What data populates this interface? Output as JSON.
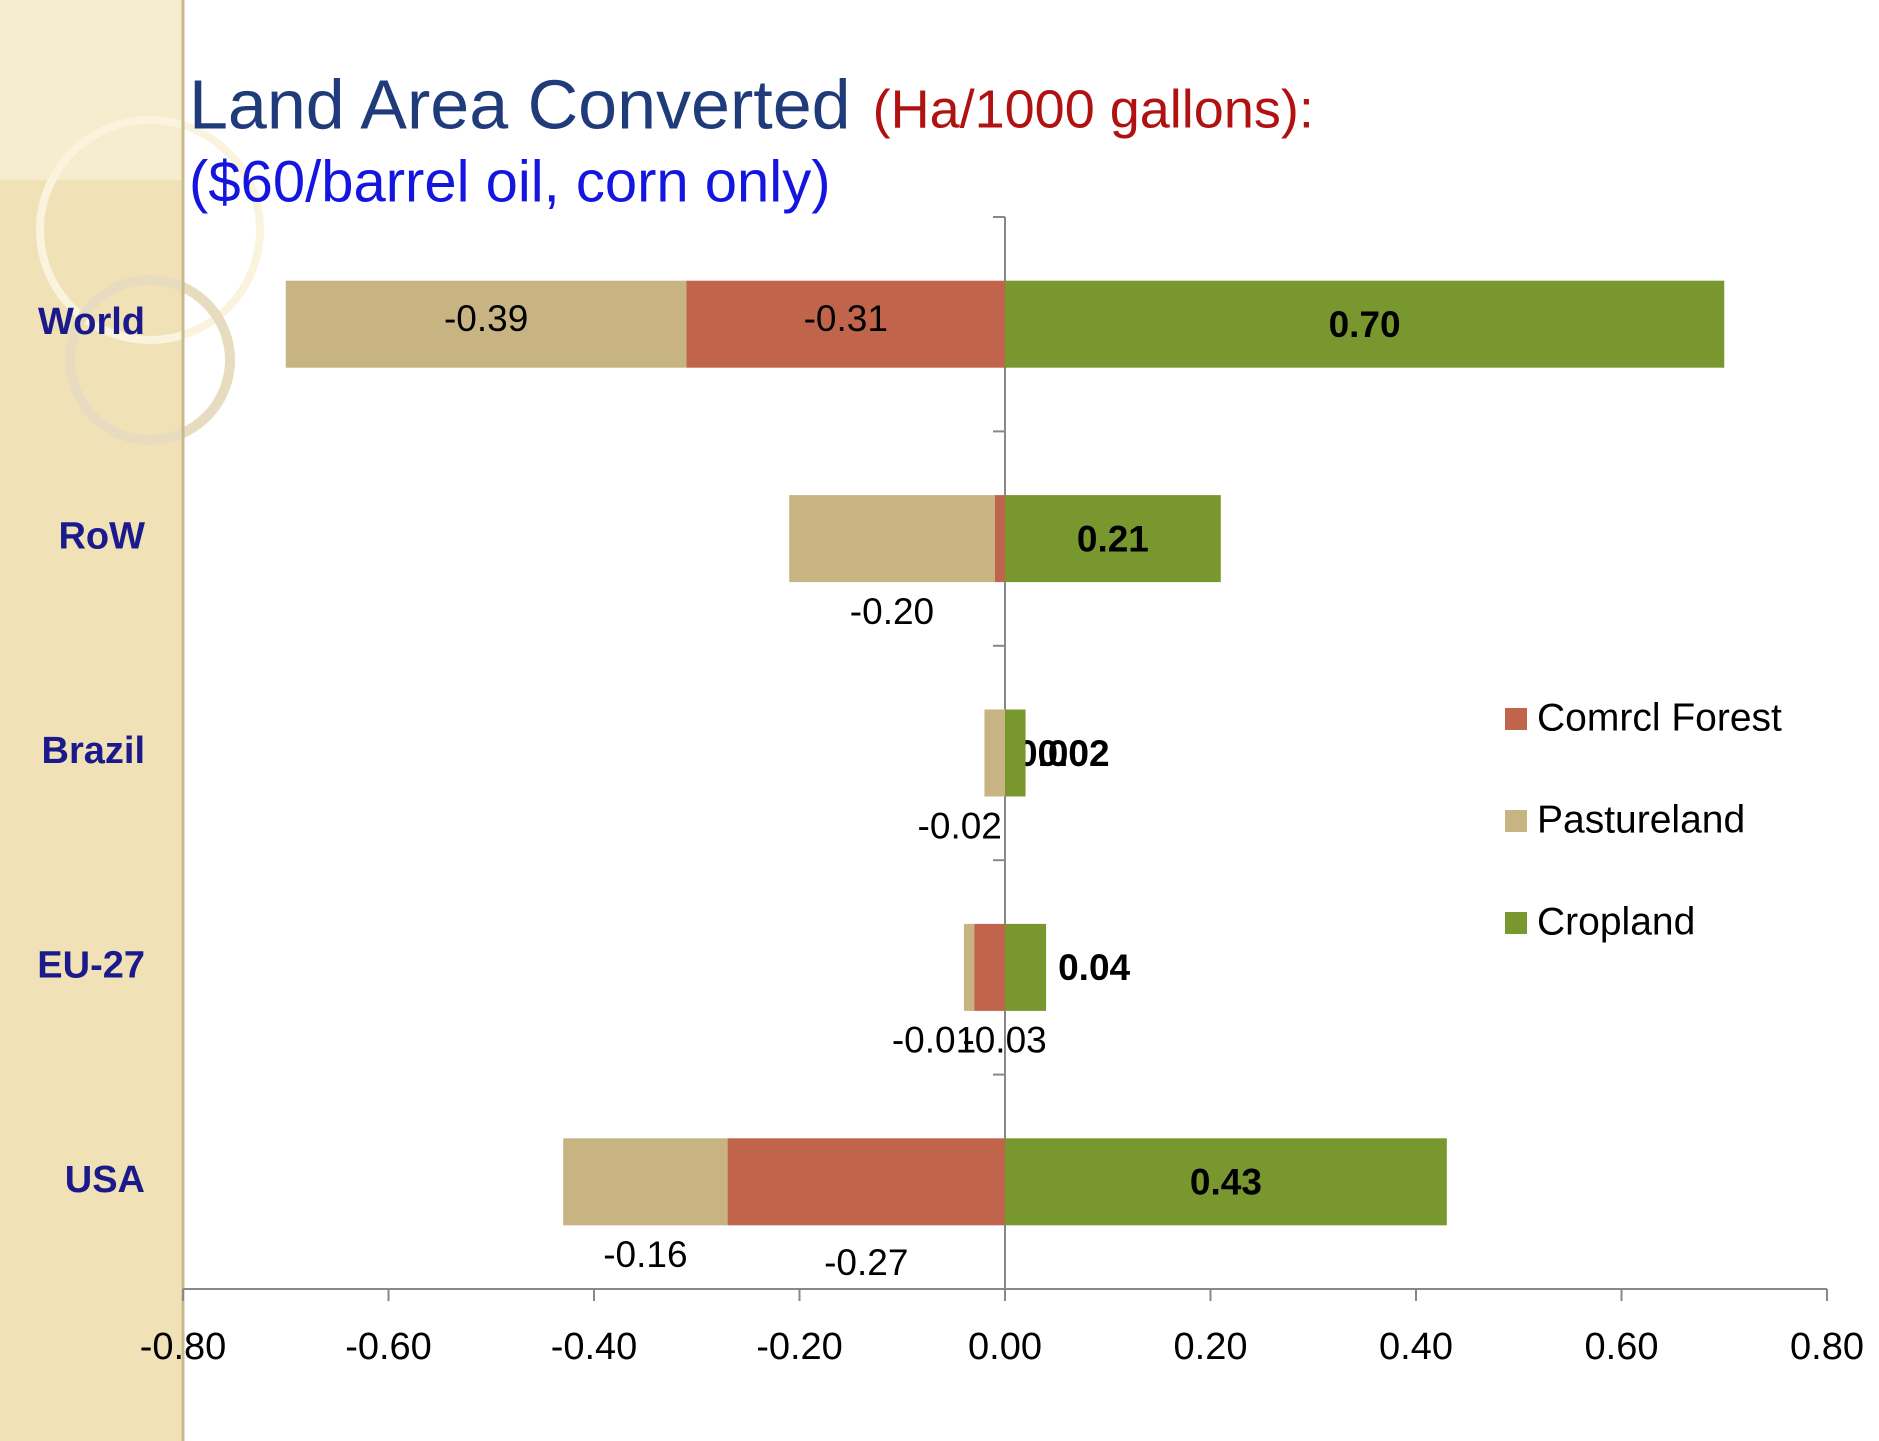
{
  "chart_data": {
    "type": "bar",
    "orientation": "horizontal",
    "stacked": true,
    "title": "Land Area Converted",
    "title_units": "(Ha/1000 gallons):",
    "subtitle": "($60/barrel oil, corn only)",
    "categories": [
      "World",
      "RoW",
      "Brazil",
      "EU-27",
      "USA"
    ],
    "series": [
      {
        "name": "Comrcl Forest",
        "color": "#c0644b",
        "values": [
          -0.31,
          -0.01,
          0.0,
          -0.03,
          -0.27
        ],
        "value_labels": [
          "-0.31",
          null,
          "0.00",
          "-0.03",
          "-0.27"
        ]
      },
      {
        "name": "Pastureland",
        "color": "#c8b483",
        "values": [
          -0.39,
          -0.2,
          -0.02,
          -0.01,
          -0.16
        ],
        "value_labels": [
          "-0.39",
          "-0.20",
          "-0.02",
          "-0.01",
          "-0.16"
        ]
      },
      {
        "name": "Cropland",
        "color": "#78982f",
        "values": [
          0.7,
          0.21,
          0.02,
          0.04,
          0.43
        ],
        "value_labels": [
          "0.70",
          "0.21",
          "0.02",
          "0.04",
          "0.43"
        ]
      }
    ],
    "xlim": [
      -0.8,
      0.8
    ],
    "xticks": [
      {
        "value": -0.8,
        "label": "-0.80"
      },
      {
        "value": -0.6,
        "label": "-0.60"
      },
      {
        "value": -0.4,
        "label": "-0.40"
      },
      {
        "value": -0.2,
        "label": "-0.20"
      },
      {
        "value": 0,
        "label": "0.00"
      },
      {
        "value": 0.2,
        "label": "0.20"
      },
      {
        "value": 0.4,
        "label": "0.40"
      },
      {
        "value": 0.6,
        "label": "0.60"
      },
      {
        "value": 0.8,
        "label": "0.80"
      }
    ],
    "legend": "right"
  }
}
